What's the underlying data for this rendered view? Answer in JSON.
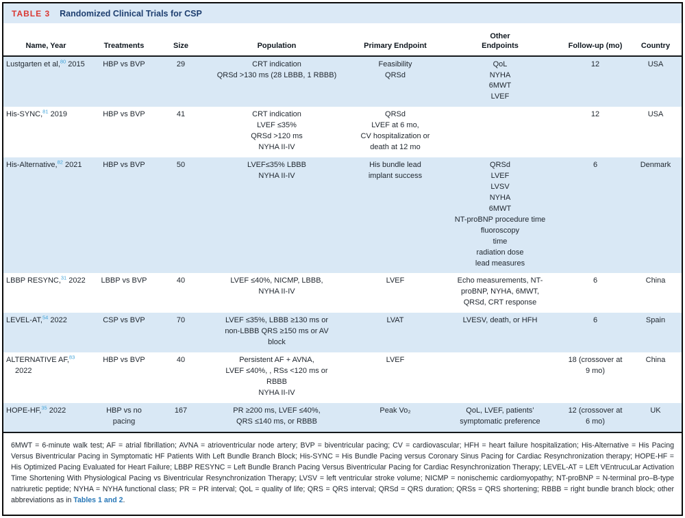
{
  "title": {
    "label": "TABLE 3",
    "text": "Randomized Clinical Trials for CSP"
  },
  "table": {
    "columns": [
      "Name, Year",
      "Treatments",
      "Size",
      "Population",
      "Primary Endpoint",
      "Other\nEndpoints",
      "Follow-up (mo)",
      "Country"
    ],
    "rows": [
      {
        "name": {
          "text": "Lustgarten et al,",
          "sup": "80",
          "year": "2015"
        },
        "treatments": "HBP vs BVP",
        "size": "29",
        "population": "CRT indication\nQRSd >130 ms (28 LBBB, 1 RBBB)",
        "primary_endpoint": "Feasibility\nQRSd",
        "other_endpoints": "QoL\nNYHA\n6MWT\nLVEF",
        "followup": "12",
        "country": "USA"
      },
      {
        "name": {
          "text": "His-SYNC,",
          "sup": "81",
          "year": "2019"
        },
        "treatments": "HBP vs BVP",
        "size": "41",
        "population": "CRT indication\nLVEF ≤35%\nQRSd >120 ms\nNYHA II-IV",
        "primary_endpoint": "QRSd\nLVEF at 6 mo,\nCV hospitalization or\ndeath at 12 mo",
        "other_endpoints": "",
        "followup": "12",
        "country": "USA"
      },
      {
        "name": {
          "text": "His-Alternative,",
          "sup": "82",
          "year": "2021"
        },
        "treatments": "HBP vs BVP",
        "size": "50",
        "population": "LVEF≤35% LBBB\nNYHA II-IV",
        "primary_endpoint": "His bundle lead\nimplant success",
        "other_endpoints": "QRSd\nLVEF\nLVSV\nNYHA\n6MWT\nNT-proBNP procedure time\nfluoroscopy\ntime\nradiation dose\nlead measures",
        "followup": "6",
        "country": "Denmark"
      },
      {
        "name": {
          "text": "LBBP RESYNC,",
          "sup": "31",
          "year": "2022"
        },
        "treatments": "LBBP vs BVP",
        "size": "40",
        "population": "LVEF ≤40%, NICMP, LBBB,\nNYHA II-IV",
        "primary_endpoint": "LVEF",
        "other_endpoints": "Echo measurements, NT-\nproBNP, NYHA, 6MWT,\nQRSd, CRT response",
        "followup": "6",
        "country": "China"
      },
      {
        "name": {
          "text": "LEVEL-AT,",
          "sup": "54",
          "year": "2022"
        },
        "treatments": "CSP vs BVP",
        "size": "70",
        "population": "LVEF ≤35%, LBBB ≥130 ms or\nnon-LBBB QRS ≥150 ms or AV\nblock",
        "primary_endpoint": "LVAT",
        "other_endpoints": "LVESV, death, or HFH",
        "followup": "6",
        "country": "Spain"
      },
      {
        "name": {
          "text": "ALTERNATIVE AF,",
          "sup": "83",
          "year": "2022"
        },
        "treatments": "HBP vs BVP",
        "size": "40",
        "population": "Persistent AF + AVNA,\nLVEF ≤40%, , RSs <120 ms or\nRBBB\nNYHA II-IV",
        "primary_endpoint": "LVEF",
        "other_endpoints": "",
        "followup": "18 (crossover at\n9 mo)",
        "country": "China"
      },
      {
        "name": {
          "text": "HOPE-HF,",
          "sup": "35",
          "year": "2022"
        },
        "treatments": "HBP vs no\npacing",
        "size": "167",
        "population": "PR ≥200 ms, LVEF ≤40%,\nQRS ≤140 ms, or RBBB",
        "primary_endpoint": "Peak Vo₂",
        "other_endpoints": "QoL, LVEF, patients’\nsymptomatic preference",
        "followup": "12 (crossover at\n6 mo)",
        "country": "UK"
      }
    ]
  },
  "footnote": {
    "text": "6MWT = 6-minute walk test; AF = atrial fibrillation; AVNA = atrioventricular node artery; BVP = biventricular pacing; CV = cardiovascular; HFH = heart failure hospitalization; His-Alternative = His Pacing Versus Biventricular Pacing in Symptomatic HF Patients With Left Bundle Branch Block; His-SYNC = His Bundle Pacing versus Coronary Sinus Pacing for Cardiac Resynchronization therapy; HOPE-HF = His Optimized Pacing Evaluated for Heart Failure; LBBP RESYNC = Left Bundle Branch Pacing Versus Biventricular Pacing for Cardiac Resynchronization Therapy; LEVEL-AT = LEft VEntrucuLar Activation Time Shortening With Physiological Pacing vs Biventricular Resynchronization Therapy; LVSV = left ventricular stroke volume; NICMP = nonischemic cardiomyopathy; NT-proBNP = N-terminal pro–B-type natriuretic peptide; NYHA = NYHA functional class; PR = PR interval; QoL = quality of life; QRS = QRS interval; QRSd = QRS duration; QRSs = QRS shortening; RBBB = right bundle branch block; other abbreviations as in ",
    "link_text": "Tables 1 and 2",
    "suffix": "."
  },
  "colors": {
    "accent_red": "#da3832",
    "title_navy": "#1d3e6f",
    "panel_blue": "#dbe9f6",
    "row_blue": "#d9e8f5",
    "cite_blue": "#41a3d9",
    "link_blue": "#2878b8",
    "text": "#1e252d"
  }
}
